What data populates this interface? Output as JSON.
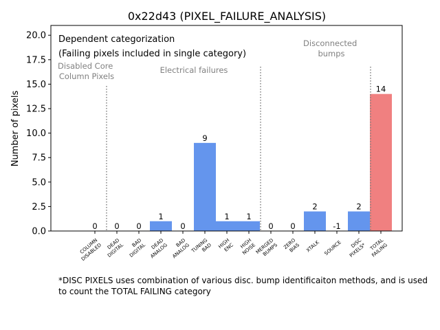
{
  "chart_data": {
    "type": "bar",
    "title": "0x22d43 (PIXEL_FAILURE_ANALYSIS)",
    "xlabel": "",
    "ylabel": "Number of pixels",
    "ylim": [
      0,
      21
    ],
    "yticks": [
      "0.0",
      "2.5",
      "5.0",
      "7.5",
      "10.0",
      "12.5",
      "15.0",
      "17.5",
      "20.0"
    ],
    "categories": [
      {
        "line1": "COLUMN",
        "line2": "DISABLED"
      },
      {
        "line1": "DEAD",
        "line2": "DIGITAL"
      },
      {
        "line1": "BAD",
        "line2": "DIGITAL"
      },
      {
        "line1": "DEAD",
        "line2": "ANALOG"
      },
      {
        "line1": "BAD",
        "line2": "ANALOG"
      },
      {
        "line1": "TUNING",
        "line2": "BAD"
      },
      {
        "line1": "HIGH",
        "line2": "ENC"
      },
      {
        "line1": "HIGH",
        "line2": "NOISE"
      },
      {
        "line1": "MERGED",
        "line2": "BUMPS"
      },
      {
        "line1": "ZERO",
        "line2": "BIAS"
      },
      {
        "line1": "XTALK",
        "line2": ""
      },
      {
        "line1": "SOURCE",
        "line2": ""
      },
      {
        "line1": "DISC",
        "line2": "PIXELS*"
      },
      {
        "line1": "TOTAL",
        "line2": "FAILING"
      }
    ],
    "values": [
      0,
      0,
      0,
      1,
      0,
      9,
      1,
      1,
      0,
      0,
      2,
      -1,
      2,
      14
    ],
    "value_labels": [
      "0",
      "0",
      "0",
      "1",
      "0",
      "9",
      "1",
      "1",
      "0",
      "0",
      "2",
      "-1",
      "2",
      "14"
    ],
    "colors": {
      "normal": "#6495ed",
      "total": "#f08080",
      "divider": "#808080",
      "group_text": "#808080"
    },
    "annotations": {
      "line1": "Dependent categorization",
      "line2": "(Failing pixels included in single category)"
    },
    "groups": [
      {
        "line1": "Disabled Core",
        "line2": "Column Pixels"
      },
      {
        "line1": "Electrical failures",
        "line2": ""
      },
      {
        "line1": "Disconnected",
        "line2": "bumps"
      }
    ],
    "dividers_after_category": [
      0,
      7,
      12
    ]
  },
  "footnote": "*DISC PIXELS uses combination of various disc. bump identificaiton methods, and is used to count the TOTAL FAILING category"
}
